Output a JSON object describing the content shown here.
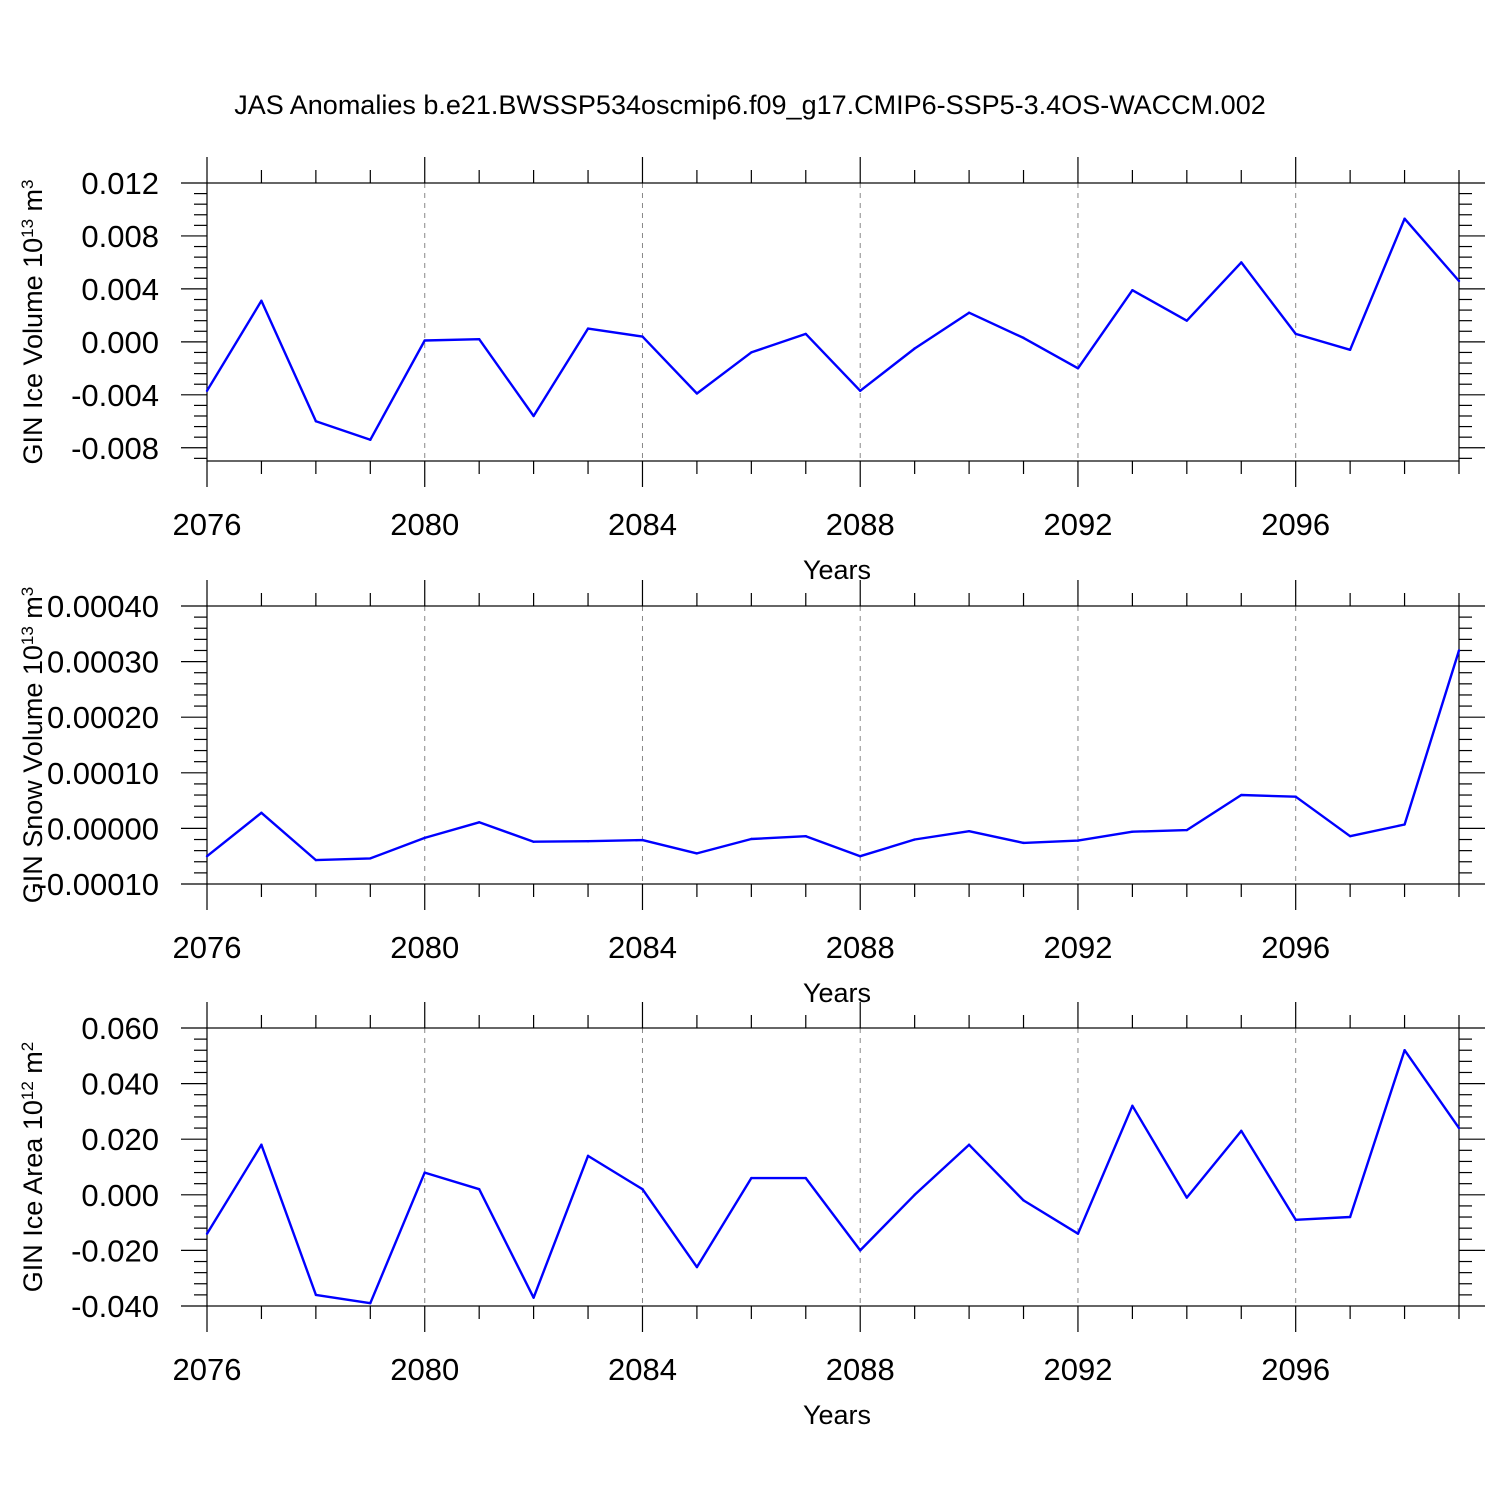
{
  "title": "JAS Anomalies b.e21.BWSSP534oscmip6.f09_g17.CMIP6-SSP5-3.4OS-WACCM.002",
  "colors": {
    "line": "#0000ff",
    "axes": "#000000",
    "grid": "#888888"
  },
  "chart_data": [
    {
      "type": "line",
      "xlabel": "Years",
      "ylabel": "GIN Ice Volume 10^13 m^3",
      "ylabel_parts": {
        "base": "GIN Ice Volume 10",
        "exp1": "13",
        "mid": " m",
        "exp2": "3"
      },
      "xlim": [
        2076,
        2099
      ],
      "ylim": [
        -0.009,
        0.012
      ],
      "xticks": [
        2076,
        2080,
        2084,
        2088,
        2092,
        2096
      ],
      "yticks": [
        -0.008,
        -0.004,
        0.0,
        0.004,
        0.008,
        0.012
      ],
      "ytick_labels": [
        "-0.008",
        "-0.004",
        "0.000",
        "0.004",
        "0.008",
        "0.012"
      ],
      "grid": "vertical dashed at major x ticks",
      "x": [
        2076,
        2077,
        2078,
        2079,
        2080,
        2081,
        2082,
        2083,
        2084,
        2085,
        2086,
        2087,
        2088,
        2089,
        2090,
        2091,
        2092,
        2093,
        2094,
        2095,
        2096,
        2097,
        2098,
        2099
      ],
      "values": [
        -0.0037,
        0.0031,
        -0.006,
        -0.0074,
        0.0001,
        0.0002,
        -0.0056,
        0.001,
        0.0004,
        -0.0039,
        -0.0008,
        0.0006,
        -0.0037,
        -0.0005,
        0.0022,
        0.0003,
        -0.002,
        0.0039,
        0.0016,
        0.006,
        0.0006,
        -0.0006,
        0.0093,
        0.0046
      ]
    },
    {
      "type": "line",
      "xlabel": "Years",
      "ylabel": "GIN Snow Volume 10^13 m^3",
      "ylabel_parts": {
        "base": "GIN Snow Volume 10",
        "exp1": "13",
        "mid": " m",
        "exp2": "3"
      },
      "xlim": [
        2076,
        2099
      ],
      "ylim": [
        -0.0001,
        0.0004
      ],
      "xticks": [
        2076,
        2080,
        2084,
        2088,
        2092,
        2096
      ],
      "yticks": [
        -0.0001,
        0.0,
        0.0001,
        0.0002,
        0.0003,
        0.0004
      ],
      "ytick_labels": [
        "-0.00010",
        "0.00000",
        "0.00010",
        "0.00020",
        "0.00030",
        "0.00040"
      ],
      "grid": "vertical dashed at major x ticks",
      "x": [
        2076,
        2077,
        2078,
        2079,
        2080,
        2081,
        2082,
        2083,
        2084,
        2085,
        2086,
        2087,
        2088,
        2089,
        2090,
        2091,
        2092,
        2093,
        2094,
        2095,
        2096,
        2097,
        2098,
        2099
      ],
      "values": [
        -5e-05,
        2.8e-05,
        -5.7e-05,
        -5.4e-05,
        -1.7e-05,
        1.1e-05,
        -2.4e-05,
        -2.3e-05,
        -2.1e-05,
        -4.5e-05,
        -1.9e-05,
        -1.4e-05,
        -5e-05,
        -2e-05,
        -5e-06,
        -2.6e-05,
        -2.2e-05,
        -6e-06,
        -3e-06,
        6e-05,
        5.7e-05,
        -1.4e-05,
        7e-06,
        0.00032
      ]
    },
    {
      "type": "line",
      "xlabel": "Years",
      "ylabel": "GIN Ice Area 10^12 m^2",
      "ylabel_parts": {
        "base": "GIN Ice Area 10",
        "exp1": "12",
        "mid": " m",
        "exp2": "2"
      },
      "xlim": [
        2076,
        2099
      ],
      "ylim": [
        -0.04,
        0.06
      ],
      "xticks": [
        2076,
        2080,
        2084,
        2088,
        2092,
        2096
      ],
      "yticks": [
        -0.04,
        -0.02,
        0.0,
        0.02,
        0.04,
        0.06
      ],
      "ytick_labels": [
        "-0.040",
        "-0.020",
        "0.000",
        "0.020",
        "0.040",
        "0.060"
      ],
      "grid": "vertical dashed at major x ticks",
      "x": [
        2076,
        2077,
        2078,
        2079,
        2080,
        2081,
        2082,
        2083,
        2084,
        2085,
        2086,
        2087,
        2088,
        2089,
        2090,
        2091,
        2092,
        2093,
        2094,
        2095,
        2096,
        2097,
        2098,
        2099
      ],
      "values": [
        -0.014,
        0.018,
        -0.036,
        -0.039,
        0.008,
        0.002,
        -0.037,
        0.014,
        0.002,
        -0.026,
        0.006,
        0.006,
        -0.02,
        0.0,
        0.018,
        -0.002,
        -0.014,
        0.032,
        -0.001,
        0.023,
        -0.009,
        -0.008,
        0.052,
        0.024
      ]
    }
  ]
}
